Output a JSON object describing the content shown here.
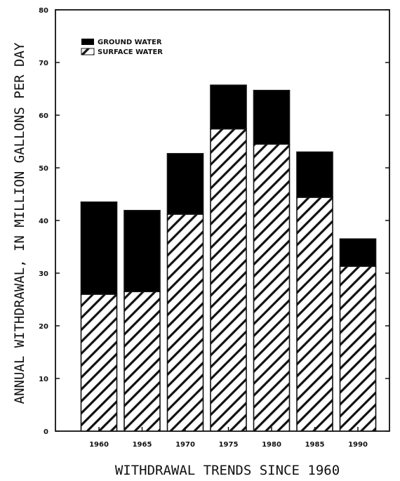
{
  "chart_data": {
    "type": "bar",
    "stacked": true,
    "categories": [
      "1960",
      "1965",
      "1970",
      "1975",
      "1980",
      "1985",
      "1990"
    ],
    "series": [
      {
        "name": "SURFACE WATER",
        "pattern": "diagonal-hatch",
        "values": [
          26,
          26.5,
          41.2,
          57.4,
          54.5,
          44.4,
          31.3
        ]
      },
      {
        "name": "GROUND WATER",
        "color": "#000000",
        "values": [
          17.5,
          15.4,
          11.5,
          8.3,
          10.2,
          8.6,
          5.2
        ]
      }
    ],
    "ylim": [
      0,
      80
    ],
    "yticks": [
      "0",
      "10",
      "20",
      "30",
      "40",
      "50",
      "60",
      "70",
      "80"
    ],
    "ylabel": "ANNUAL WITHDRAWAL, IN MILLION GALLONS PER DAY",
    "xlabel": "WITHDRAWAL TRENDS SINCE 1960",
    "legend": {
      "position": "top-left",
      "entries": [
        "GROUND WATER",
        "SURFACE WATER"
      ]
    },
    "grid": false
  }
}
